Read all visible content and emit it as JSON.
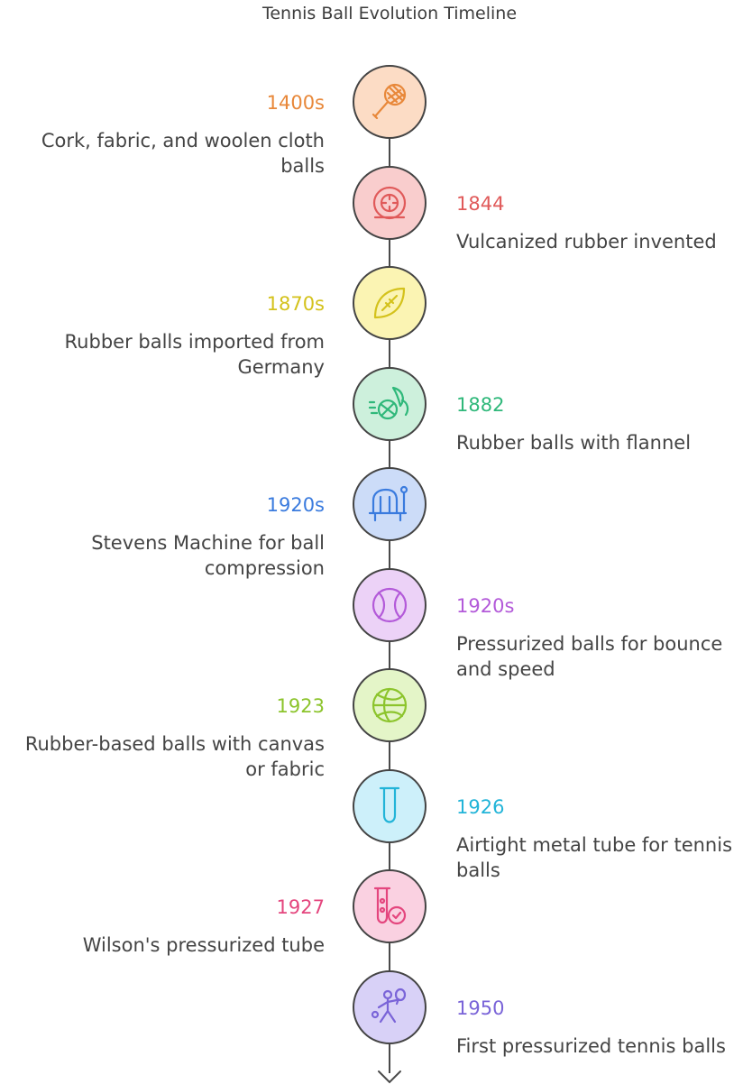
{
  "title": "Tennis Ball Evolution Timeline",
  "events": [
    {
      "year": "1400s",
      "description": "Cork, fabric, and woolen cloth balls",
      "side": "left",
      "color": "#e8883a",
      "fill": "#fcdcc5",
      "icon": "tennis-racket-icon"
    },
    {
      "year": "1844",
      "description": "Vulcanized rubber invented",
      "side": "right",
      "color": "#e05a5a",
      "fill": "#f9cdcd",
      "icon": "rubber-tire-icon"
    },
    {
      "year": "1870s",
      "description": "Rubber balls imported from Germany",
      "side": "left",
      "color": "#d4c21c",
      "fill": "#fbf4b3",
      "icon": "football-icon"
    },
    {
      "year": "1882",
      "description": "Rubber balls with flannel",
      "side": "right",
      "color": "#2fb87a",
      "fill": "#cdf0dc",
      "icon": "flying-ball-icon"
    },
    {
      "year": "1920s",
      "description": "Stevens Machine for ball compression",
      "side": "left",
      "color": "#3a7bde",
      "fill": "#ccdcf8",
      "icon": "compression-machine-icon"
    },
    {
      "year": "1920s",
      "description": "Pressurized balls for bounce and speed",
      "side": "right",
      "color": "#b35ad9",
      "fill": "#ecd2f7",
      "icon": "tennis-ball-icon"
    },
    {
      "year": "1923",
      "description": "Rubber-based balls with canvas or fabric",
      "side": "left",
      "color": "#8cc42c",
      "fill": "#e4f5c8",
      "icon": "basketball-icon"
    },
    {
      "year": "1926",
      "description": "Airtight metal tube for tennis balls",
      "side": "right",
      "color": "#22b4d8",
      "fill": "#cdf0fa",
      "icon": "test-tube-icon"
    },
    {
      "year": "1927",
      "description": "Wilson's pressurized tube",
      "side": "left",
      "color": "#e4467e",
      "fill": "#fad1e1",
      "icon": "tube-check-icon"
    },
    {
      "year": "1950",
      "description": "First pressurized tennis balls",
      "side": "right",
      "color": "#7a64d8",
      "fill": "#d8d1f7",
      "icon": "tennis-player-icon"
    }
  ]
}
